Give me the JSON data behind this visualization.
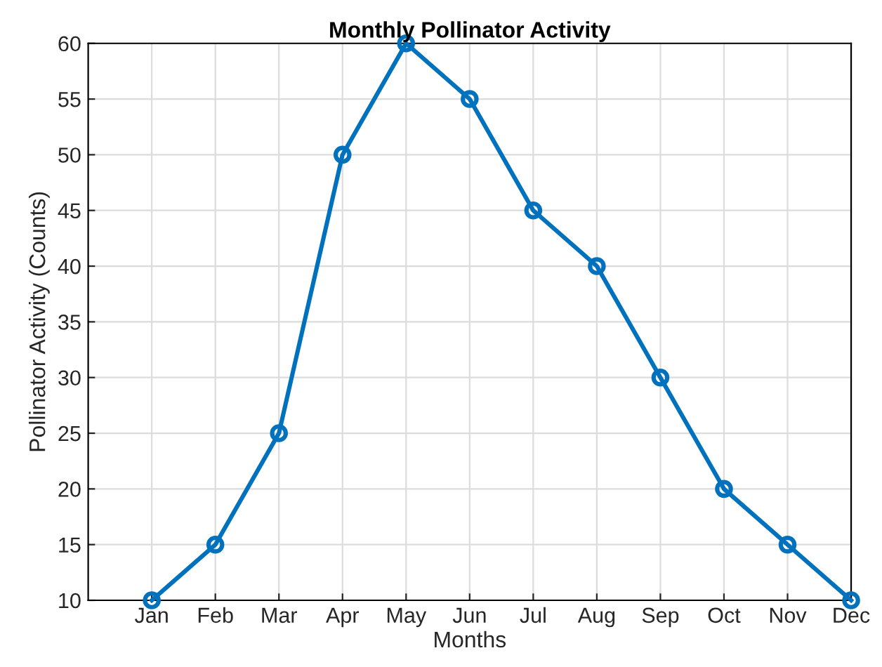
{
  "chart_data": {
    "type": "line",
    "title": "Monthly Pollinator Activity",
    "xlabel": "Months",
    "ylabel": "Pollinator Activity (Counts)",
    "categories": [
      "Jan",
      "Feb",
      "Mar",
      "Apr",
      "May",
      "Jun",
      "Jul",
      "Aug",
      "Sep",
      "Oct",
      "Nov",
      "Dec"
    ],
    "series": [
      {
        "color": "#0072bd",
        "values": [
          10,
          15,
          25,
          50,
          60,
          55,
          45,
          40,
          30,
          20,
          15,
          10
        ]
      }
    ],
    "ylim": [
      10,
      60
    ],
    "yticks": [
      10,
      15,
      20,
      25,
      30,
      35,
      40,
      45,
      50,
      55,
      60
    ],
    "grid": true,
    "marker": "circle",
    "line_style": "solid"
  }
}
